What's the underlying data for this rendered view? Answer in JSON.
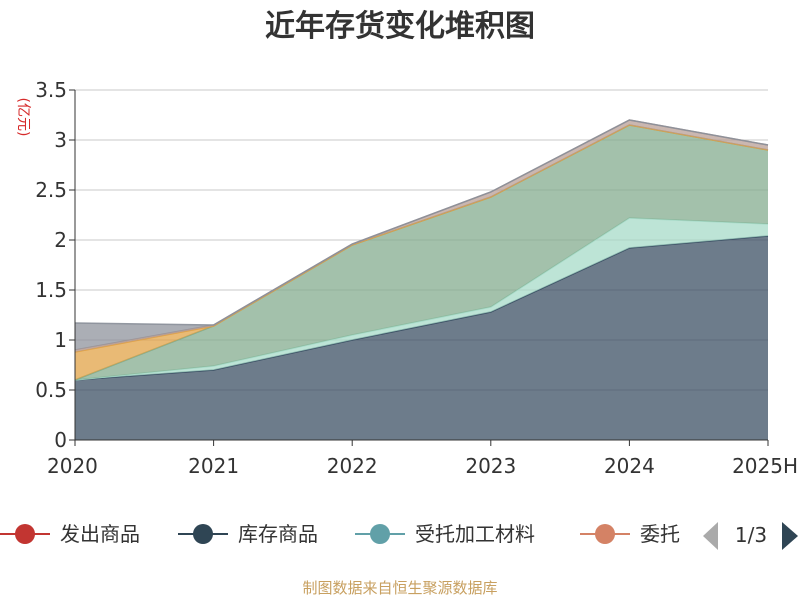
{
  "chart_data": {
    "type": "area",
    "stacked": true,
    "title": "近年存货变化堆积图",
    "unit_label": "(亿元)",
    "categories": [
      "2020",
      "2021",
      "2022",
      "2023",
      "2024",
      "2025H"
    ],
    "ylim": [
      0,
      3.5
    ],
    "yticks": [
      "0",
      "0.5",
      "1",
      "1.5",
      "2",
      "2.5",
      "3",
      "3.5"
    ],
    "grid": true,
    "series": [
      {
        "name": "库存商品",
        "color": "#34495e",
        "values": [
          0.6,
          0.7,
          1.0,
          1.28,
          1.92,
          2.04
        ]
      },
      {
        "name": "受托加工材料",
        "color": "#a3d9c6",
        "values": [
          0.0,
          0.04,
          0.05,
          0.05,
          0.3,
          0.12
        ]
      },
      {
        "name": "",
        "color": "#7fa98a",
        "values": [
          0.0,
          0.4,
          0.9,
          1.1,
          0.93,
          0.74
        ]
      },
      {
        "name": "",
        "color": "#e0a040",
        "values": [
          0.28,
          0.0,
          0.0,
          0.0,
          0.0,
          0.0
        ]
      },
      {
        "name": "",
        "color": "#b59b93",
        "values": [
          0.02,
          0.01,
          0.01,
          0.05,
          0.05,
          0.05
        ]
      },
      {
        "name": "",
        "color": "#8a8f99",
        "values": [
          0.27,
          0.0,
          0.0,
          0.0,
          0.0,
          0.0
        ]
      }
    ],
    "legend": {
      "position": "bottom",
      "items": [
        {
          "name": "发出商品",
          "color": "#c23531"
        },
        {
          "name": "库存商品",
          "color": "#2f4554"
        },
        {
          "name": "受托加工材料",
          "color": "#61a0a8"
        },
        {
          "name": "委托",
          "color": "#d48265"
        }
      ],
      "page": "1/3"
    },
    "source": "制图数据来自恒生聚源数据库"
  }
}
